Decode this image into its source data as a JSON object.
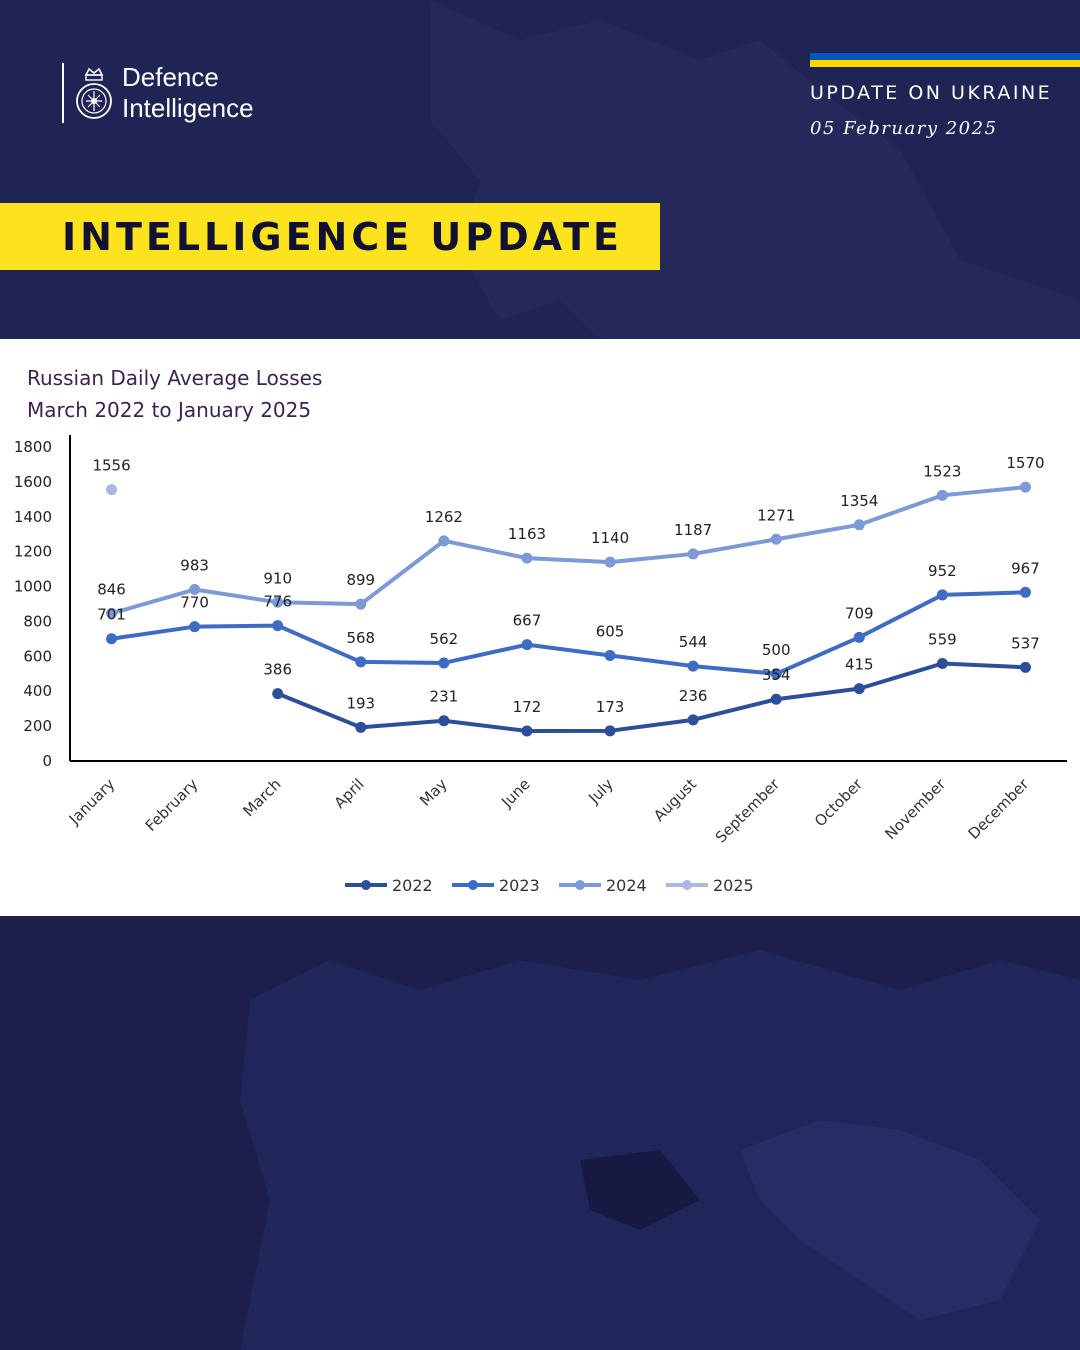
{
  "header": {
    "logo_line1": "Defence",
    "logo_line2": "Intelligence",
    "update_title": "UPDATE ON UKRAINE",
    "update_date": "05 February 2025",
    "banner": "INTELLIGENCE UPDATE"
  },
  "colors": {
    "background": "#1b1f4a",
    "banner": "#fde31d",
    "flag_blue": "#0057b7",
    "flag_yellow": "#ffd500",
    "series_2022": "#2c4f9a",
    "series_2023": "#3e6cc5",
    "series_2024": "#7d99d6",
    "series_2025": "#aab9e2"
  },
  "chart_data": {
    "type": "line",
    "title": "Russian Daily Average Losses",
    "subtitle": "March 2022 to January 2025",
    "categories": [
      "January",
      "February",
      "March",
      "April",
      "May",
      "June",
      "July",
      "August",
      "September",
      "October",
      "November",
      "December"
    ],
    "ylim": [
      0,
      1800
    ],
    "yticks": [
      0,
      200,
      400,
      600,
      800,
      1000,
      1200,
      1400,
      1600,
      1800
    ],
    "grid": false,
    "legend_position": "bottom",
    "series": [
      {
        "name": "2022",
        "values": [
          null,
          null,
          386,
          193,
          231,
          172,
          173,
          236,
          354,
          415,
          559,
          537
        ]
      },
      {
        "name": "2023",
        "values": [
          701,
          770,
          776,
          568,
          562,
          667,
          605,
          544,
          500,
          709,
          952,
          967
        ]
      },
      {
        "name": "2024",
        "values": [
          846,
          983,
          910,
          899,
          1262,
          1163,
          1140,
          1187,
          1271,
          1354,
          1523,
          1570
        ]
      },
      {
        "name": "2025",
        "values": [
          1556,
          null,
          null,
          null,
          null,
          null,
          null,
          null,
          null,
          null,
          null,
          null
        ]
      }
    ]
  }
}
